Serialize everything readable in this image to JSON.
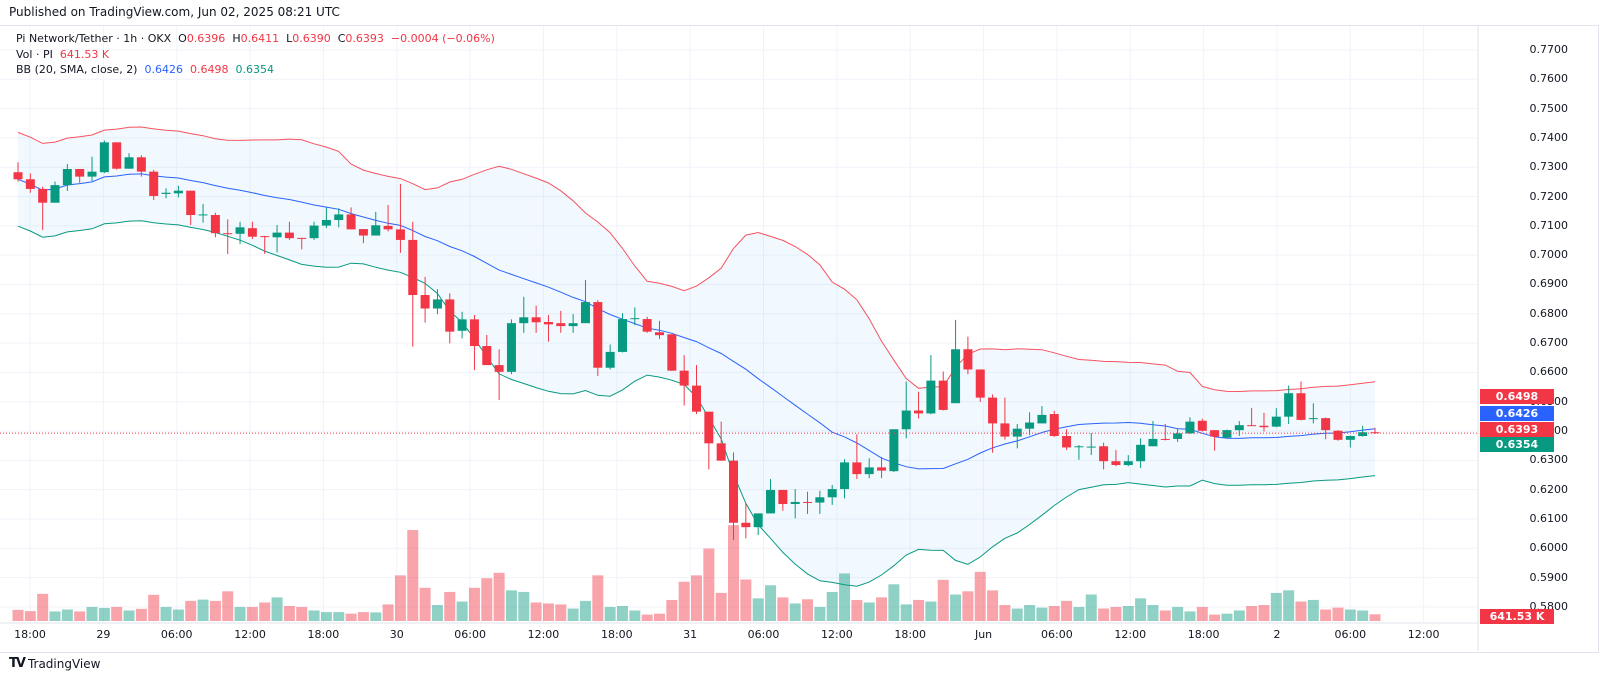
{
  "published": "Published on TradingView.com, Jun 02, 2025 08:21 UTC",
  "legend": {
    "symbol": "Pi Network/Tether · 1h · OKX",
    "o_label": "O",
    "o": "0.6396",
    "h_label": "H",
    "h": "0.6411",
    "l_label": "L",
    "l": "0.6390",
    "c_label": "C",
    "c": "0.6393",
    "change": "−0.0004 (−0.06%)",
    "vol_label": "Vol · PI",
    "vol": "641.53 K",
    "bb_label": "BB (20, SMA, close, 2)",
    "bb_mid": "0.6426",
    "bb_upper": "0.6498",
    "bb_lower": "0.6354"
  },
  "price_labels": {
    "upper": "0.6498",
    "mid": "0.6426",
    "last": "0.6393",
    "lower": "0.6354",
    "volume": "641.53 K"
  },
  "brand": {
    "logo": "17",
    "name": "TradingView"
  },
  "colors": {
    "up": "#089981",
    "down": "#f23645",
    "bb_mid": "#2962ff",
    "bb_upper": "#f7525f",
    "bb_lower": "#089981",
    "bb_fill": "#2196f3"
  },
  "chart_data": {
    "type": "candlestick",
    "title": "Pi Network/Tether · 1h · OKX",
    "ylim": [
      0.575,
      0.775
    ],
    "y_ticks": [
      "0.7700",
      "0.7600",
      "0.7500",
      "0.7400",
      "0.7300",
      "0.7200",
      "0.7100",
      "0.7000",
      "0.6900",
      "0.6800",
      "0.6700",
      "0.6600",
      "0.6500",
      "0.6400",
      "0.6300",
      "0.6200",
      "0.6100",
      "0.6000",
      "0.5900",
      "0.5800"
    ],
    "x_ticks": [
      "18:00",
      "29",
      "06:00",
      "12:00",
      "18:00",
      "30",
      "06:00",
      "12:00",
      "18:00",
      "31",
      "06:00",
      "12:00",
      "18:00",
      "Jun",
      "06:00",
      "12:00",
      "18:00",
      "2",
      "06:00",
      "12:00"
    ],
    "grid": true,
    "indicator": "BB (20, SMA, close, 2)",
    "ohlc": [
      [
        0.7283,
        0.7317,
        0.7251,
        0.7259
      ],
      [
        0.7259,
        0.7279,
        0.7213,
        0.7226
      ],
      [
        0.7226,
        0.7234,
        0.7086,
        0.7179
      ],
      [
        0.7179,
        0.7251,
        0.7179,
        0.7239
      ],
      [
        0.7239,
        0.7311,
        0.7219,
        0.7294
      ],
      [
        0.7294,
        0.7294,
        0.7247,
        0.7268
      ],
      [
        0.7268,
        0.7336,
        0.7253,
        0.7285
      ],
      [
        0.7283,
        0.7391,
        0.728,
        0.7385
      ],
      [
        0.7385,
        0.7385,
        0.7292,
        0.7295
      ],
      [
        0.7295,
        0.7348,
        0.7295,
        0.7334
      ],
      [
        0.7334,
        0.7341,
        0.7268,
        0.7285
      ],
      [
        0.7285,
        0.7291,
        0.7188,
        0.7202
      ],
      [
        0.7209,
        0.7228,
        0.7194,
        0.7213
      ],
      [
        0.7211,
        0.7237,
        0.7197,
        0.722
      ],
      [
        0.722,
        0.722,
        0.7103,
        0.7137
      ],
      [
        0.7137,
        0.7175,
        0.7111,
        0.7139
      ],
      [
        0.7137,
        0.7145,
        0.7061,
        0.7075
      ],
      [
        0.7075,
        0.7122,
        0.7004,
        0.7073
      ],
      [
        0.7073,
        0.7114,
        0.7038,
        0.7095
      ],
      [
        0.7092,
        0.7114,
        0.7055,
        0.7063
      ],
      [
        0.7065,
        0.7066,
        0.7004,
        0.7063
      ],
      [
        0.7061,
        0.7103,
        0.7009,
        0.7077
      ],
      [
        0.7077,
        0.7114,
        0.7052,
        0.7058
      ],
      [
        0.7059,
        0.7059,
        0.702,
        0.7058
      ],
      [
        0.7058,
        0.7114,
        0.7052,
        0.7101
      ],
      [
        0.7101,
        0.7163,
        0.7092,
        0.712
      ],
      [
        0.712,
        0.716,
        0.7095,
        0.7139
      ],
      [
        0.7139,
        0.7163,
        0.7088,
        0.7088
      ],
      [
        0.7089,
        0.7089,
        0.7041,
        0.7067
      ],
      [
        0.7067,
        0.7148,
        0.7067,
        0.7102
      ],
      [
        0.71,
        0.7171,
        0.7081,
        0.7088
      ],
      [
        0.7088,
        0.7243,
        0.7008,
        0.7052
      ],
      [
        0.7052,
        0.7114,
        0.6688,
        0.6864
      ],
      [
        0.6864,
        0.6926,
        0.677,
        0.6818
      ],
      [
        0.6818,
        0.6884,
        0.6799,
        0.6849
      ],
      [
        0.6849,
        0.687,
        0.6699,
        0.6739
      ],
      [
        0.6742,
        0.6807,
        0.6716,
        0.6781
      ],
      [
        0.6781,
        0.6796,
        0.6608,
        0.669
      ],
      [
        0.669,
        0.6728,
        0.6625,
        0.6625
      ],
      [
        0.6625,
        0.6679,
        0.6506,
        0.6602
      ],
      [
        0.6602,
        0.6781,
        0.6594,
        0.6768
      ],
      [
        0.6768,
        0.6858,
        0.6735,
        0.6788
      ],
      [
        0.6788,
        0.6828,
        0.6735,
        0.6771
      ],
      [
        0.6772,
        0.6796,
        0.6705,
        0.6764
      ],
      [
        0.6768,
        0.681,
        0.6735,
        0.6758
      ],
      [
        0.6758,
        0.6799,
        0.6735,
        0.6768
      ],
      [
        0.6768,
        0.6915,
        0.6768,
        0.684
      ],
      [
        0.684,
        0.6847,
        0.6588,
        0.6616
      ],
      [
        0.6616,
        0.6695,
        0.661,
        0.667
      ],
      [
        0.667,
        0.6802,
        0.6668,
        0.6782
      ],
      [
        0.6782,
        0.6822,
        0.6761,
        0.6785
      ],
      [
        0.6782,
        0.679,
        0.6735,
        0.6739
      ],
      [
        0.6737,
        0.6776,
        0.6714,
        0.6727
      ],
      [
        0.673,
        0.673,
        0.6605,
        0.6606
      ],
      [
        0.6606,
        0.6659,
        0.6487,
        0.6555
      ],
      [
        0.6555,
        0.6625,
        0.6458,
        0.6466
      ],
      [
        0.6466,
        0.6466,
        0.6269,
        0.6358
      ],
      [
        0.6358,
        0.6432,
        0.6298,
        0.6299
      ],
      [
        0.6299,
        0.6327,
        0.6028,
        0.6087
      ],
      [
        0.6087,
        0.6153,
        0.6034,
        0.6072
      ],
      [
        0.6072,
        0.6119,
        0.6045,
        0.6119
      ],
      [
        0.6119,
        0.6236,
        0.6119,
        0.6199
      ],
      [
        0.6199,
        0.6199,
        0.6128,
        0.6151
      ],
      [
        0.6151,
        0.6202,
        0.6102,
        0.6158
      ],
      [
        0.6158,
        0.6193,
        0.6117,
        0.6156
      ],
      [
        0.6156,
        0.6196,
        0.6117,
        0.6174
      ],
      [
        0.6174,
        0.6216,
        0.6148,
        0.6202
      ],
      [
        0.6202,
        0.6304,
        0.617,
        0.6293
      ],
      [
        0.6293,
        0.6389,
        0.6236,
        0.6253
      ],
      [
        0.6253,
        0.6307,
        0.6239,
        0.6276
      ],
      [
        0.6276,
        0.6312,
        0.6239,
        0.6265
      ],
      [
        0.6263,
        0.6406,
        0.626,
        0.6406
      ],
      [
        0.6406,
        0.6569,
        0.6375,
        0.647
      ],
      [
        0.647,
        0.6534,
        0.6443,
        0.646
      ],
      [
        0.646,
        0.6659,
        0.6457,
        0.6572
      ],
      [
        0.6572,
        0.6603,
        0.647,
        0.6472
      ],
      [
        0.6495,
        0.6779,
        0.6495,
        0.6679
      ],
      [
        0.6679,
        0.6722,
        0.6594,
        0.661
      ],
      [
        0.661,
        0.661,
        0.6499,
        0.6514
      ],
      [
        0.6514,
        0.6525,
        0.6326,
        0.6426
      ],
      [
        0.6426,
        0.6514,
        0.6371,
        0.6381
      ],
      [
        0.6381,
        0.6424,
        0.6341,
        0.6408
      ],
      [
        0.6408,
        0.6464,
        0.6386,
        0.6429
      ],
      [
        0.6426,
        0.6485,
        0.6426,
        0.6455
      ],
      [
        0.6458,
        0.6469,
        0.638,
        0.6383
      ],
      [
        0.6383,
        0.6406,
        0.6335,
        0.6344
      ],
      [
        0.6346,
        0.6352,
        0.6302,
        0.6348
      ],
      [
        0.6346,
        0.6393,
        0.6318,
        0.6347
      ],
      [
        0.6348,
        0.636,
        0.6269,
        0.6297
      ],
      [
        0.6297,
        0.6335,
        0.628,
        0.6284
      ],
      [
        0.6284,
        0.6318,
        0.628,
        0.6297
      ],
      [
        0.6297,
        0.6375,
        0.6274,
        0.6353
      ],
      [
        0.6348,
        0.6434,
        0.6348,
        0.6373
      ],
      [
        0.6373,
        0.6424,
        0.6368,
        0.637
      ],
      [
        0.6373,
        0.6409,
        0.6363,
        0.6392
      ],
      [
        0.6392,
        0.6447,
        0.639,
        0.6432
      ],
      [
        0.6435,
        0.6442,
        0.6398,
        0.6401
      ],
      [
        0.6403,
        0.6403,
        0.6333,
        0.6381
      ],
      [
        0.6377,
        0.6405,
        0.6375,
        0.6403
      ],
      [
        0.6403,
        0.6434,
        0.6383,
        0.642
      ],
      [
        0.642,
        0.6479,
        0.6417,
        0.6418
      ],
      [
        0.6418,
        0.6462,
        0.6398,
        0.6413
      ],
      [
        0.6415,
        0.6478,
        0.6413,
        0.6449
      ],
      [
        0.6449,
        0.6555,
        0.6424,
        0.6529
      ],
      [
        0.6529,
        0.6569,
        0.6436,
        0.6438
      ],
      [
        0.6441,
        0.6495,
        0.6426,
        0.6444
      ],
      [
        0.6444,
        0.6446,
        0.6372,
        0.6403
      ],
      [
        0.6401,
        0.6403,
        0.6367,
        0.637
      ],
      [
        0.637,
        0.6385,
        0.6344,
        0.6383
      ],
      [
        0.6383,
        0.6418,
        0.6381,
        0.6396
      ],
      [
        0.6396,
        0.6411,
        0.639,
        0.6393
      ]
    ],
    "volume_k": [
      1069,
      947,
      2597,
      917,
      1100,
      917,
      1344,
      1253,
      1344,
      1008,
      1161,
      2505,
      1344,
      1100,
      1925,
      2047,
      1925,
      2841,
      1344,
      1344,
      1772,
      2261,
      1436,
      1344,
      1008,
      855,
      855,
      703,
      855,
      825,
      1589,
      4369,
      8707,
      3177,
      1528,
      2780,
      1864,
      3177,
      4094,
      4613,
      2933,
      2780,
      1772,
      1680,
      1589,
      1191,
      1925,
      4369,
      1344,
      1436,
      1008,
      611,
      703,
      2016,
      3758,
      4369,
      6935,
      2688,
      9170,
      3972,
      2169,
      3422,
      2261,
      1680,
      2077,
      1344,
      2780,
      4552,
      2016,
      1772,
      2261,
      3513,
      1589,
      2016,
      1864,
      3941,
      2536,
      2841,
      4705,
      2933,
      1528,
      1191,
      1528,
      1283,
      1436,
      1925,
      1344,
      2536,
      1191,
      1344,
      1436,
      2169,
      1528,
      1008,
      1344,
      917,
      1344,
      611,
      703,
      1008,
      1436,
      1528,
      2688,
      2933,
      1864,
      2016,
      1100,
      1283,
      1100,
      1008,
      641.53
    ],
    "last_price": 0.6393
  }
}
